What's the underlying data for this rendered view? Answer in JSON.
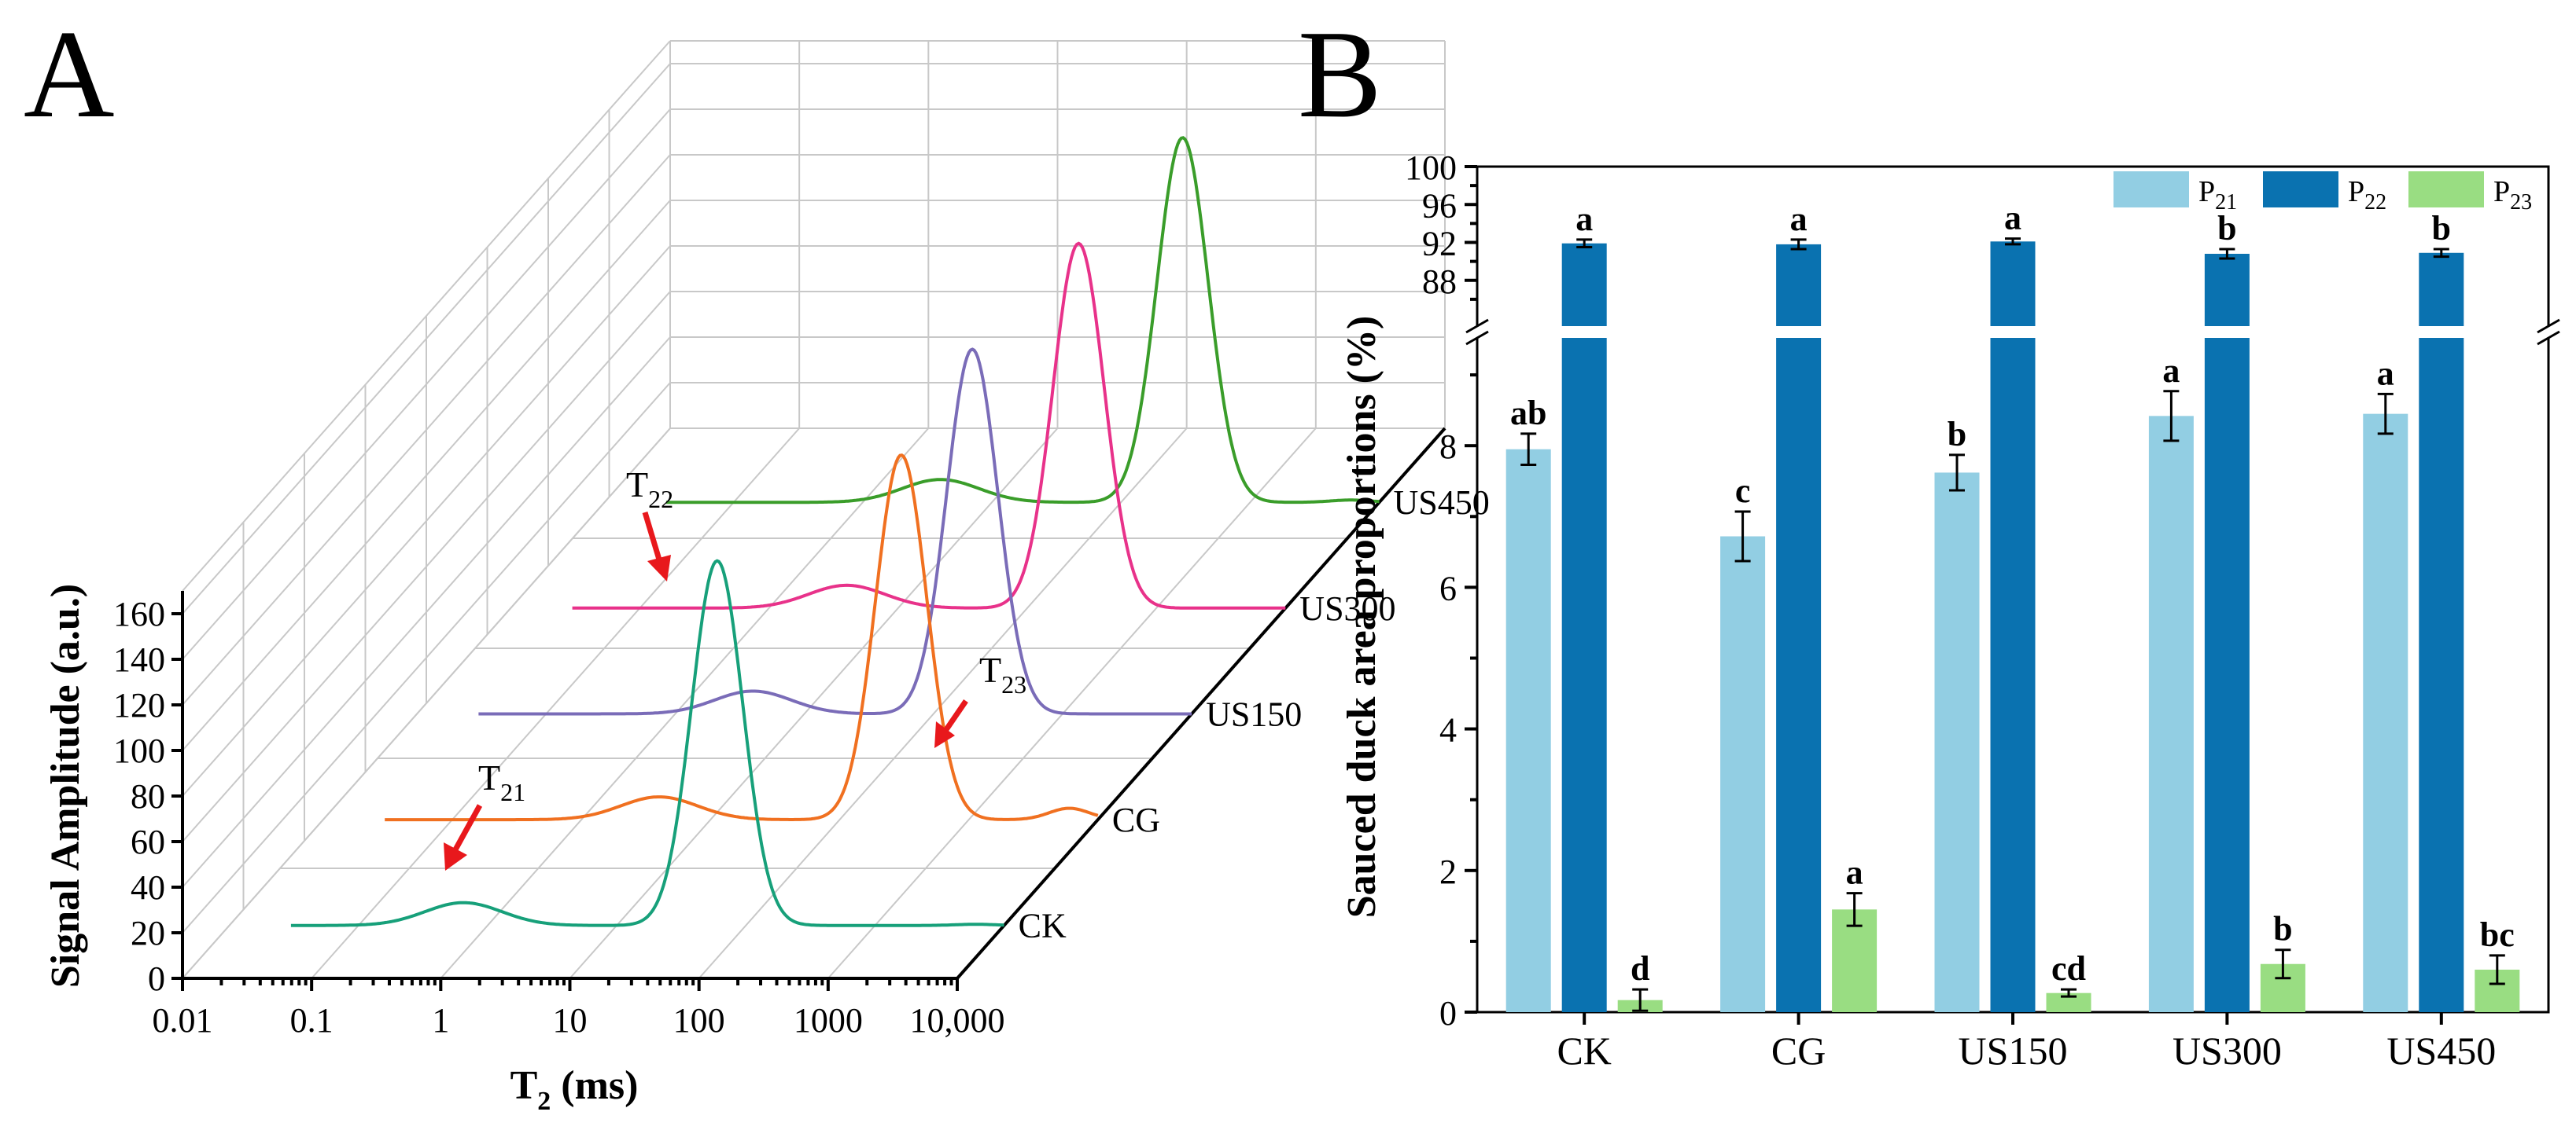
{
  "panel_a": {
    "letter": "A",
    "y_axis_title": "Signal Amplitude (a.u.)",
    "x_axis_title_main": "T",
    "x_axis_title_sub": "2",
    "x_axis_title_unit": " (ms)",
    "y_ticks": [
      "0",
      "20",
      "40",
      "60",
      "80",
      "100",
      "120",
      "140",
      "160"
    ],
    "x_ticks": [
      "0.01",
      "0.1",
      "1",
      "10",
      "100",
      "1000",
      "10,000"
    ],
    "annotations": [
      {
        "main": "T",
        "sub": "21"
      },
      {
        "main": "T",
        "sub": "22"
      },
      {
        "main": "T",
        "sub": "23"
      }
    ]
  },
  "panel_b": {
    "letter": "B",
    "y_axis_title": "Sauced duck area proportions (%)",
    "upper_ticks": [
      "88",
      "92",
      "96",
      "100"
    ],
    "lower_ticks": [
      "0",
      "2",
      "4",
      "6",
      "8"
    ],
    "legend": [
      {
        "main": "P",
        "sub": "21"
      },
      {
        "main": "P",
        "sub": "22"
      },
      {
        "main": "P",
        "sub": "23"
      }
    ]
  },
  "chart_data": [
    {
      "type": "line",
      "title": "",
      "xlabel": "T2 (ms)",
      "ylabel": "Signal Amplitude (a.u.)",
      "x_scale": "log",
      "xlim": [
        0.01,
        10000
      ],
      "ylim": [
        0,
        170
      ],
      "series": [
        {
          "name": "CK",
          "color": "#17a07a",
          "peaks": [
            {
              "t2": 0.65,
              "amp": 10
            },
            {
              "t2": 60,
              "amp": 160
            },
            {
              "t2": 6000,
              "amp": 0.5
            }
          ],
          "range": [
            0.03,
            10000
          ]
        },
        {
          "name": "CG",
          "color": "#f07020",
          "peaks": [
            {
              "t2": 4,
              "amp": 10
            },
            {
              "t2": 300,
              "amp": 160
            },
            {
              "t2": 6000,
              "amp": 5
            }
          ],
          "range": [
            0.03,
            10000
          ]
        },
        {
          "name": "US150",
          "color": "#7a6cb8",
          "peaks": [
            {
              "t2": 4,
              "amp": 10
            },
            {
              "t2": 200,
              "amp": 160
            }
          ],
          "range": [
            0.03,
            10000
          ]
        },
        {
          "name": "US300",
          "color": "#e8328a",
          "peaks": [
            {
              "t2": 4,
              "amp": 10
            },
            {
              "t2": 250,
              "amp": 160
            }
          ],
          "range": [
            0.03,
            10000
          ]
        },
        {
          "name": "US450",
          "color": "#3a9d2a",
          "peaks": [
            {
              "t2": 4,
              "amp": 10
            },
            {
              "t2": 300,
              "amp": 160
            },
            {
              "t2": 6000,
              "amp": 1
            }
          ],
          "range": [
            0.03,
            10000
          ]
        }
      ]
    },
    {
      "type": "bar",
      "title": "",
      "xlabel": "",
      "ylabel": "Sauced duck area proportions (%)",
      "categories": [
        "CK",
        "CG",
        "US150",
        "US300",
        "US450"
      ],
      "y_break": {
        "lower": [
          0,
          9.8
        ],
        "upper": [
          84,
          100
        ]
      },
      "series": [
        {
          "name": "P21",
          "color": "#92cee3",
          "values": [
            7.95,
            6.72,
            7.62,
            8.42,
            8.45
          ],
          "errors": [
            0.22,
            0.35,
            0.25,
            0.35,
            0.28
          ],
          "letters": [
            "ab",
            "c",
            "b",
            "a",
            "a"
          ]
        },
        {
          "name": "P22",
          "color": "#0a72b0",
          "values": [
            91.9,
            91.8,
            92.1,
            90.8,
            90.9
          ],
          "errors": [
            0.4,
            0.5,
            0.3,
            0.5,
            0.4
          ],
          "letters": [
            "a",
            "a",
            "a",
            "b",
            "b"
          ]
        },
        {
          "name": "P23",
          "color": "#99dd82",
          "values": [
            0.17,
            1.45,
            0.27,
            0.68,
            0.6
          ],
          "errors": [
            0.15,
            0.23,
            0.05,
            0.2,
            0.2
          ],
          "letters": [
            "d",
            "a",
            "cd",
            "b",
            "bc"
          ]
        }
      ]
    }
  ]
}
